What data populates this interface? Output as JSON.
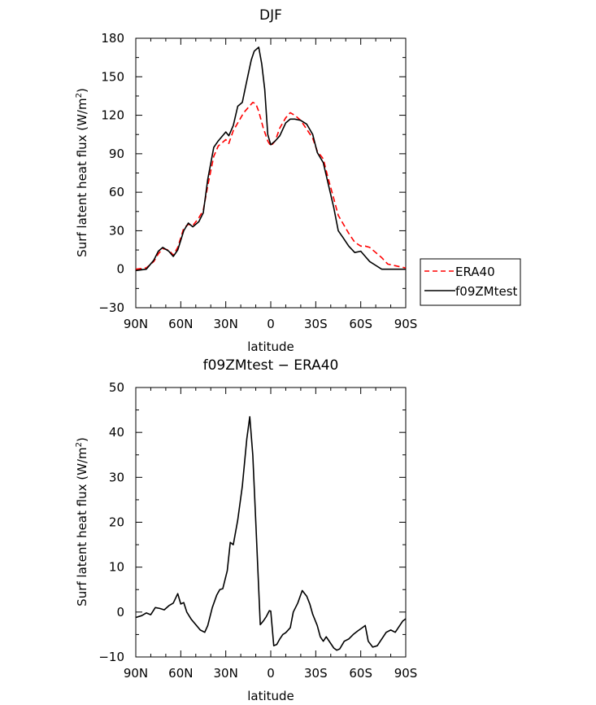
{
  "chart_data": [
    {
      "type": "line",
      "title": "DJF",
      "xlabel": "latitude",
      "ylabel_prefix": "Surf latent heat flux (W/m",
      "ylabel_sup": "2",
      "ylabel_suffix": ")",
      "xlim": [
        90,
        -90
      ],
      "ylim": [
        -30,
        180
      ],
      "xticks": [
        90,
        60,
        30,
        0,
        -30,
        -60,
        -90
      ],
      "xtick_labels": [
        "90N",
        "60N",
        "30N",
        "0",
        "30S",
        "60S",
        "90S"
      ],
      "yticks": [
        -30,
        0,
        30,
        60,
        90,
        120,
        150,
        180
      ],
      "ytick_labels": [
        "−30",
        "0",
        "30",
        "60",
        "90",
        "120",
        "150",
        "180"
      ],
      "legend": "right",
      "series": [
        {
          "name": "ERA40",
          "color": "#ff0000",
          "style": "dashed",
          "x": [
            90,
            83,
            78,
            75,
            72,
            68,
            65,
            62,
            58,
            55,
            52,
            48,
            45,
            42,
            38,
            35,
            30,
            28,
            25,
            22,
            18,
            15,
            12,
            10,
            8,
            5,
            2,
            0,
            -3,
            -6,
            -10,
            -13,
            -16,
            -20,
            -24,
            -28,
            -31,
            -35,
            -38,
            -42,
            -45,
            -48,
            -52,
            -56,
            -60,
            -63,
            -66,
            -70,
            -74,
            -78,
            -82,
            -86,
            -90
          ],
          "y": [
            0,
            1,
            6,
            12,
            16,
            15,
            11,
            17,
            32,
            35,
            34,
            40,
            46,
            65,
            88,
            96,
            101,
            98,
            108,
            114,
            122,
            126,
            130,
            129,
            123,
            110,
            100,
            96,
            100,
            110,
            118,
            122,
            120,
            116,
            109,
            102,
            92,
            86,
            72,
            55,
            42,
            36,
            28,
            21,
            18,
            18,
            17,
            13,
            9,
            4,
            3,
            2,
            1
          ]
        },
        {
          "name": "f09ZMtest",
          "color": "#000000",
          "style": "solid",
          "x": [
            90,
            83,
            78,
            75,
            72,
            68,
            65,
            62,
            58,
            55,
            52,
            48,
            45,
            42,
            38,
            35,
            30,
            28,
            25,
            22,
            19,
            17,
            15,
            13,
            11,
            8,
            6,
            4,
            2,
            0,
            -3,
            -6,
            -10,
            -13,
            -16,
            -20,
            -24,
            -28,
            -31,
            -35,
            -38,
            -42,
            -45,
            -48,
            -52,
            -56,
            -60,
            -63,
            -66,
            -70,
            -74,
            -78,
            -82,
            -86,
            -90
          ],
          "y": [
            -1,
            0,
            7,
            14,
            17,
            14,
            10,
            15,
            30,
            36,
            33,
            37,
            44,
            70,
            95,
            100,
            107,
            104,
            112,
            127,
            130,
            141,
            152,
            163,
            170,
            173,
            160,
            140,
            105,
            97,
            100,
            104,
            114,
            117,
            117,
            116,
            113,
            105,
            91,
            83,
            68,
            48,
            30,
            25,
            18,
            13,
            14,
            10,
            6,
            3,
            0,
            0,
            0,
            0,
            0
          ]
        }
      ]
    },
    {
      "type": "line",
      "title": "f09ZMtest − ERA40",
      "xlabel": "latitude",
      "ylabel_prefix": "Surf latent heat flux (W/m",
      "ylabel_sup": "2",
      "ylabel_suffix": ")",
      "xlim": [
        90,
        -90
      ],
      "ylim": [
        -10,
        50
      ],
      "xticks": [
        90,
        60,
        30,
        0,
        -30,
        -60,
        -90
      ],
      "xtick_labels": [
        "90N",
        "60N",
        "30N",
        "0",
        "30S",
        "60S",
        "90S"
      ],
      "yticks": [
        -10,
        0,
        10,
        20,
        30,
        40,
        50
      ],
      "ytick_labels": [
        "−10",
        "0",
        "10",
        "20",
        "30",
        "40",
        "50"
      ],
      "series": [
        {
          "color": "#000000",
          "style": "solid",
          "x": [
            90,
            86,
            83,
            80,
            77,
            74,
            71,
            68,
            65,
            62,
            60,
            58,
            56,
            53,
            50,
            47,
            44,
            42,
            39,
            36,
            34,
            32,
            29,
            27,
            25,
            22,
            19,
            16,
            14,
            12,
            10,
            7,
            5,
            3,
            1,
            0,
            -2,
            -4,
            -6,
            -8,
            -10,
            -13,
            -15,
            -18,
            -21,
            -24,
            -26,
            -28,
            -31,
            -33,
            -35,
            -37,
            -40,
            -42,
            -44,
            -46,
            -49,
            -52,
            -55,
            -58,
            -61,
            -63,
            -65,
            -68,
            -71,
            -74,
            -77,
            -80,
            -83,
            -86,
            -88,
            -90
          ],
          "y": [
            -1.2,
            -0.8,
            -0.2,
            -0.6,
            1.0,
            0.8,
            0.5,
            1.4,
            2.0,
            4.1,
            1.8,
            2.1,
            0.0,
            -1.6,
            -2.8,
            -4.0,
            -4.5,
            -3.0,
            1.0,
            3.8,
            5.0,
            5.2,
            9.2,
            15.5,
            15.0,
            20.5,
            28.0,
            38.5,
            43.5,
            35.0,
            20.0,
            -2.8,
            -2.0,
            -1.0,
            0.3,
            0.2,
            -7.5,
            -7.2,
            -6.0,
            -5.0,
            -4.6,
            -3.5,
            0.0,
            2.0,
            4.8,
            3.5,
            1.8,
            -0.5,
            -3.0,
            -5.5,
            -6.5,
            -5.5,
            -7.0,
            -8.0,
            -8.5,
            -8.2,
            -6.5,
            -6.0,
            -5.0,
            -4.2,
            -3.5,
            -3.0,
            -6.5,
            -7.8,
            -7.5,
            -6.0,
            -4.5,
            -4.0,
            -4.5,
            -3.0,
            -2.0,
            -1.5
          ]
        }
      ]
    }
  ]
}
